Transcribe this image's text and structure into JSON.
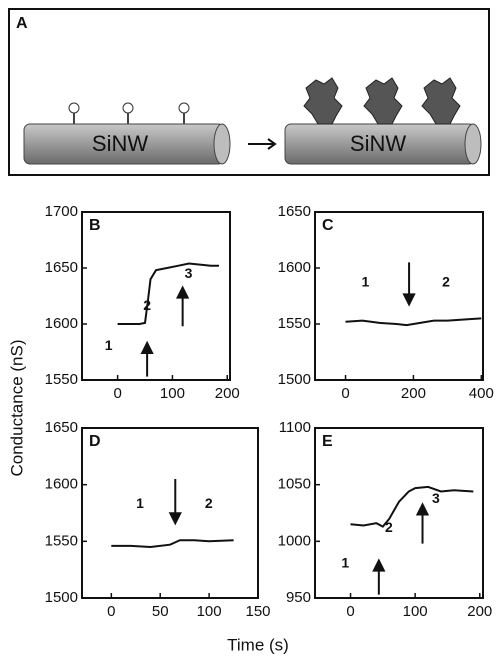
{
  "panel_a": {
    "label": "A",
    "left": "SiNW",
    "right": "SiNW"
  },
  "ylabel": "Conductance (nS)",
  "xlabel": "Time (s)",
  "chart_data": [
    {
      "type": "line",
      "title": "B",
      "color": "#111111",
      "x": [
        0,
        20,
        40,
        50,
        55,
        60,
        70,
        90,
        110,
        130,
        150,
        170,
        185
      ],
      "values": [
        1600,
        1600,
        1600,
        1601,
        1620,
        1640,
        1648,
        1650,
        1652,
        1654,
        1653,
        1652,
        1652
      ],
      "xlim": [
        -65,
        205
      ],
      "xticks": [
        0,
        100,
        200
      ],
      "ylim": [
        1550,
        1700
      ],
      "yticks": [
        1550,
        1600,
        1650,
        1700
      ],
      "annotations": [
        "1",
        "2",
        "3"
      ]
    },
    {
      "type": "line",
      "title": "C",
      "color": "#111111",
      "x": [
        0,
        50,
        100,
        150,
        180,
        220,
        260,
        300,
        350,
        400
      ],
      "values": [
        1552,
        1553,
        1551,
        1550,
        1549,
        1551,
        1553,
        1553,
        1554,
        1555
      ],
      "xlim": [
        -90,
        405
      ],
      "xticks": [
        0,
        200,
        400
      ],
      "ylim": [
        1500,
        1650
      ],
      "yticks": [
        1500,
        1550,
        1600,
        1650
      ],
      "annotations": [
        "1",
        "2"
      ]
    },
    {
      "type": "line",
      "title": "D",
      "color": "#111111",
      "x": [
        0,
        20,
        40,
        60,
        65,
        70,
        85,
        100,
        125
      ],
      "values": [
        1546,
        1546,
        1545,
        1547,
        1549,
        1551,
        1551,
        1550,
        1551
      ],
      "xlim": [
        -30,
        150
      ],
      "xticks": [
        0,
        50,
        100,
        150
      ],
      "ylim": [
        1500,
        1650
      ],
      "yticks": [
        1500,
        1550,
        1600,
        1650
      ],
      "annotations": [
        "1",
        "2"
      ]
    },
    {
      "type": "line",
      "title": "E",
      "color": "#111111",
      "x": [
        0,
        20,
        40,
        50,
        60,
        75,
        90,
        100,
        120,
        140,
        160,
        190
      ],
      "values": [
        1015,
        1014,
        1016,
        1013,
        1020,
        1035,
        1044,
        1047,
        1048,
        1044,
        1045,
        1044
      ],
      "xlim": [
        -55,
        205
      ],
      "xticks": [
        0,
        100,
        200
      ],
      "ylim": [
        950,
        1100
      ],
      "yticks": [
        950,
        1000,
        1050,
        1100
      ],
      "annotations": [
        "1",
        "2",
        "3"
      ]
    }
  ]
}
